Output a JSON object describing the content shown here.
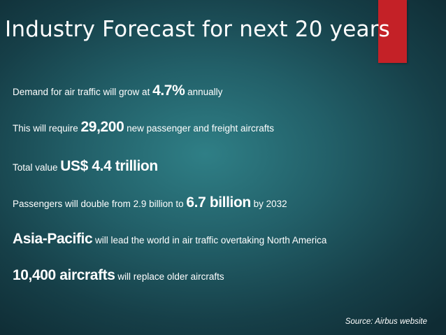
{
  "slide": {
    "title": "Industry Forecast for next 20 years",
    "accent_color": "#c42127",
    "bullets": [
      {
        "pre": "Demand for air traffic will grow at ",
        "highlight": "4.7%",
        "post": " annually"
      },
      {
        "pre": "This will require ",
        "highlight": "29,200",
        "post": " new passenger and freight aircrafts"
      },
      {
        "pre": "Total value ",
        "highlight": "US$ 4.4 trillion",
        "post": ""
      },
      {
        "pre": "Passengers will double from 2.9 billion to ",
        "highlight": "6.7 billion",
        "post": " by 2032"
      },
      {
        "pre": "",
        "highlight": "Asia-Pacific",
        "post": " will lead the world in air traffic overtaking North America"
      },
      {
        "pre": "",
        "highlight": "10,400 aircrafts",
        "post": " will replace older aircrafts"
      }
    ],
    "source": "Source: Airbus website"
  }
}
